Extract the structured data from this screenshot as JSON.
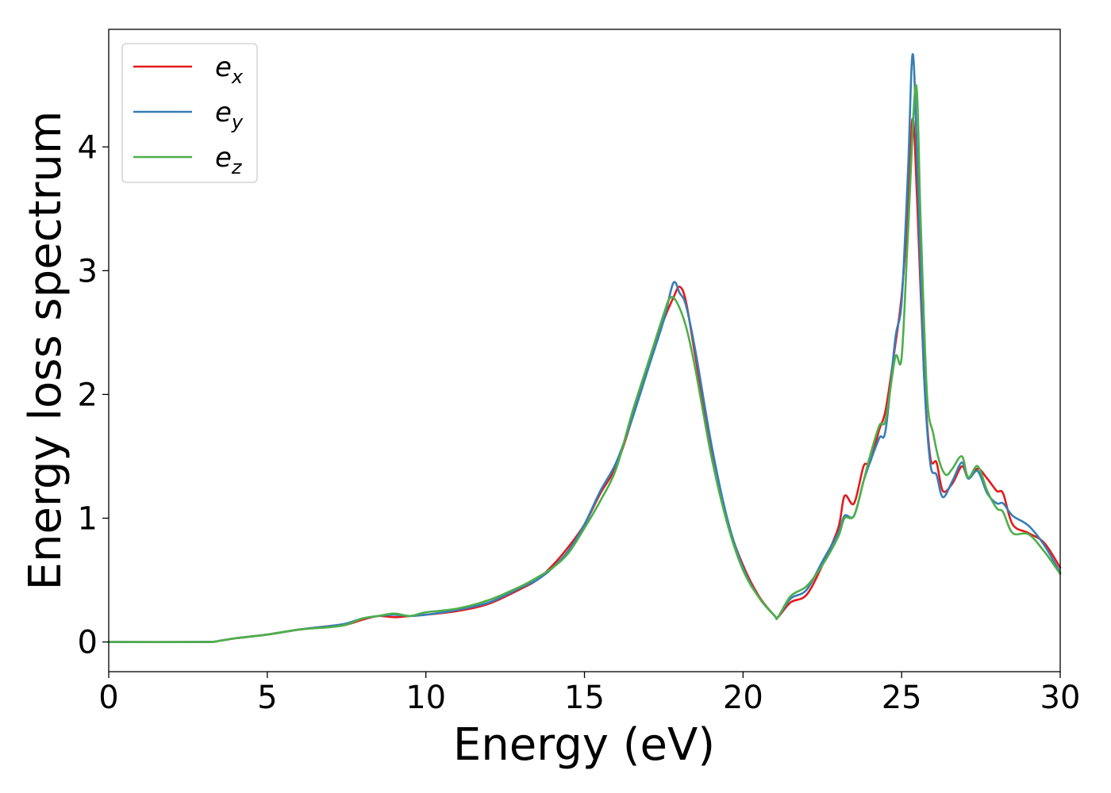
{
  "chart_data": {
    "type": "line",
    "title": "",
    "xlabel": "Energy (eV)",
    "ylabel": "Energy loss spectrum",
    "xlim": [
      0,
      30
    ],
    "ylim": [
      -0.24,
      4.95
    ],
    "xticks": [
      0,
      5,
      10,
      15,
      20,
      25,
      30
    ],
    "yticks": [
      0,
      1,
      2,
      3,
      4
    ],
    "grid": false,
    "legend": {
      "position": "top-left"
    },
    "series": [
      {
        "name": "e",
        "subscript": "x",
        "color": "#e41a1c",
        "points": [
          [
            0,
            0
          ],
          [
            3,
            0
          ],
          [
            3.5,
            0.01
          ],
          [
            4,
            0.03
          ],
          [
            5,
            0.06
          ],
          [
            6,
            0.1
          ],
          [
            7,
            0.13
          ],
          [
            7.5,
            0.14
          ],
          [
            8,
            0.18
          ],
          [
            8.5,
            0.21
          ],
          [
            9,
            0.2
          ],
          [
            9.5,
            0.21
          ],
          [
            10,
            0.22
          ],
          [
            11,
            0.25
          ],
          [
            12,
            0.31
          ],
          [
            13,
            0.43
          ],
          [
            13.5,
            0.5
          ],
          [
            14,
            0.62
          ],
          [
            14.5,
            0.77
          ],
          [
            15,
            0.95
          ],
          [
            15.5,
            1.2
          ],
          [
            16,
            1.42
          ],
          [
            16.5,
            1.8
          ],
          [
            17,
            2.22
          ],
          [
            17.5,
            2.6
          ],
          [
            17.8,
            2.78
          ],
          [
            18,
            2.87
          ],
          [
            18.2,
            2.75
          ],
          [
            18.5,
            2.3
          ],
          [
            19,
            1.55
          ],
          [
            19.5,
            0.98
          ],
          [
            20,
            0.62
          ],
          [
            20.5,
            0.37
          ],
          [
            21,
            0.21
          ],
          [
            21.1,
            0.2
          ],
          [
            21.5,
            0.32
          ],
          [
            22,
            0.38
          ],
          [
            22.5,
            0.62
          ],
          [
            23,
            0.92
          ],
          [
            23.2,
            1.18
          ],
          [
            23.5,
            1.12
          ],
          [
            23.8,
            1.42
          ],
          [
            24,
            1.45
          ],
          [
            24.3,
            1.72
          ],
          [
            24.5,
            1.88
          ],
          [
            24.8,
            2.4
          ],
          [
            25,
            2.8
          ],
          [
            25.2,
            3.5
          ],
          [
            25.35,
            4.23
          ],
          [
            25.5,
            3.5
          ],
          [
            25.7,
            2.2
          ],
          [
            25.9,
            1.5
          ],
          [
            26.1,
            1.45
          ],
          [
            26.3,
            1.22
          ],
          [
            26.6,
            1.28
          ],
          [
            26.9,
            1.42
          ],
          [
            27.1,
            1.33
          ],
          [
            27.4,
            1.4
          ],
          [
            27.7,
            1.32
          ],
          [
            28,
            1.22
          ],
          [
            28.2,
            1.2
          ],
          [
            28.5,
            0.95
          ],
          [
            29,
            0.88
          ],
          [
            29.5,
            0.8
          ],
          [
            30,
            0.6
          ]
        ]
      },
      {
        "name": "e",
        "subscript": "y",
        "color": "#377eb8",
        "points": [
          [
            0,
            0
          ],
          [
            3,
            0
          ],
          [
            3.5,
            0.01
          ],
          [
            4,
            0.03
          ],
          [
            5,
            0.06
          ],
          [
            6,
            0.1
          ],
          [
            7,
            0.13
          ],
          [
            7.5,
            0.15
          ],
          [
            8,
            0.19
          ],
          [
            8.5,
            0.21
          ],
          [
            9,
            0.22
          ],
          [
            9.5,
            0.21
          ],
          [
            10,
            0.22
          ],
          [
            11,
            0.26
          ],
          [
            12,
            0.32
          ],
          [
            13,
            0.44
          ],
          [
            13.5,
            0.5
          ],
          [
            14,
            0.6
          ],
          [
            14.5,
            0.74
          ],
          [
            15,
            0.95
          ],
          [
            15.5,
            1.22
          ],
          [
            16,
            1.45
          ],
          [
            16.5,
            1.8
          ],
          [
            17,
            2.2
          ],
          [
            17.5,
            2.6
          ],
          [
            17.8,
            2.9
          ],
          [
            18,
            2.82
          ],
          [
            18.2,
            2.72
          ],
          [
            18.5,
            2.35
          ],
          [
            19,
            1.6
          ],
          [
            19.5,
            1.0
          ],
          [
            20,
            0.6
          ],
          [
            20.5,
            0.36
          ],
          [
            21,
            0.21
          ],
          [
            21.1,
            0.2
          ],
          [
            21.5,
            0.35
          ],
          [
            22,
            0.42
          ],
          [
            22.5,
            0.65
          ],
          [
            23,
            0.88
          ],
          [
            23.2,
            1.02
          ],
          [
            23.5,
            1.02
          ],
          [
            23.8,
            1.3
          ],
          [
            24,
            1.45
          ],
          [
            24.3,
            1.65
          ],
          [
            24.5,
            1.72
          ],
          [
            24.8,
            2.45
          ],
          [
            25,
            2.75
          ],
          [
            25.2,
            3.8
          ],
          [
            25.35,
            4.75
          ],
          [
            25.5,
            3.8
          ],
          [
            25.7,
            2.2
          ],
          [
            25.9,
            1.45
          ],
          [
            26.1,
            1.35
          ],
          [
            26.3,
            1.17
          ],
          [
            26.6,
            1.3
          ],
          [
            26.9,
            1.45
          ],
          [
            27.1,
            1.32
          ],
          [
            27.4,
            1.38
          ],
          [
            27.7,
            1.2
          ],
          [
            28,
            1.12
          ],
          [
            28.2,
            1.12
          ],
          [
            28.5,
            1.02
          ],
          [
            29,
            0.94
          ],
          [
            29.5,
            0.78
          ],
          [
            30,
            0.56
          ]
        ]
      },
      {
        "name": "e",
        "subscript": "z",
        "color": "#4daf4a",
        "points": [
          [
            0,
            0
          ],
          [
            3,
            0
          ],
          [
            3.5,
            0.01
          ],
          [
            4,
            0.03
          ],
          [
            5,
            0.06
          ],
          [
            6,
            0.1
          ],
          [
            7,
            0.12
          ],
          [
            7.5,
            0.14
          ],
          [
            8,
            0.19
          ],
          [
            8.5,
            0.21
          ],
          [
            9,
            0.23
          ],
          [
            9.5,
            0.21
          ],
          [
            10,
            0.24
          ],
          [
            11,
            0.27
          ],
          [
            12,
            0.34
          ],
          [
            13,
            0.45
          ],
          [
            13.5,
            0.52
          ],
          [
            14,
            0.6
          ],
          [
            14.5,
            0.72
          ],
          [
            15,
            0.92
          ],
          [
            15.5,
            1.14
          ],
          [
            16,
            1.4
          ],
          [
            16.5,
            1.85
          ],
          [
            17,
            2.25
          ],
          [
            17.5,
            2.65
          ],
          [
            17.7,
            2.78
          ],
          [
            17.9,
            2.75
          ],
          [
            18.2,
            2.55
          ],
          [
            18.5,
            2.2
          ],
          [
            19,
            1.5
          ],
          [
            19.5,
            0.96
          ],
          [
            20,
            0.58
          ],
          [
            20.5,
            0.36
          ],
          [
            21,
            0.21
          ],
          [
            21.1,
            0.2
          ],
          [
            21.5,
            0.37
          ],
          [
            22,
            0.45
          ],
          [
            22.5,
            0.62
          ],
          [
            23,
            0.85
          ],
          [
            23.2,
            1.0
          ],
          [
            23.5,
            1.02
          ],
          [
            23.8,
            1.3
          ],
          [
            24,
            1.5
          ],
          [
            24.3,
            1.75
          ],
          [
            24.5,
            1.8
          ],
          [
            24.8,
            2.3
          ],
          [
            25,
            2.3
          ],
          [
            25.2,
            3.3
          ],
          [
            25.45,
            4.5
          ],
          [
            25.6,
            3.4
          ],
          [
            25.8,
            2.0
          ],
          [
            26,
            1.68
          ],
          [
            26.2,
            1.45
          ],
          [
            26.4,
            1.35
          ],
          [
            26.6,
            1.4
          ],
          [
            26.9,
            1.5
          ],
          [
            27.1,
            1.33
          ],
          [
            27.4,
            1.42
          ],
          [
            27.7,
            1.22
          ],
          [
            28,
            1.08
          ],
          [
            28.2,
            1.05
          ],
          [
            28.5,
            0.88
          ],
          [
            29,
            0.87
          ],
          [
            29.5,
            0.73
          ],
          [
            30,
            0.55
          ]
        ]
      }
    ]
  }
}
